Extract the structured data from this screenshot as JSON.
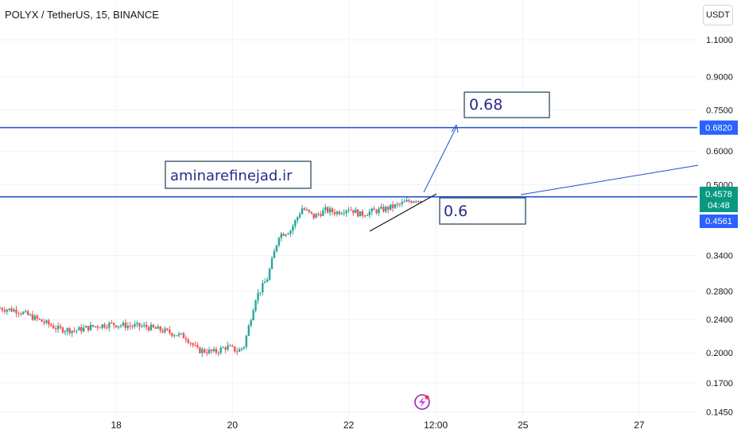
{
  "header": {
    "title": "POLYX / TetherUS, 15, BINANCE",
    "currency": "USDT"
  },
  "colors": {
    "up": "#26a69a",
    "down": "#ef5350",
    "line": "#1e50c8",
    "badge_blue": "#2962ff",
    "badge_green": "#089981",
    "anno_text": "#2a2a8a",
    "grid": "#f0f3fa"
  },
  "chart_data": {
    "type": "candlestick",
    "symbol": "POLYX / TetherUS",
    "interval": "15",
    "exchange": "BINANCE",
    "y_scale": "log",
    "ylim": [
      0.138,
      1.2
    ],
    "y_ticks": [
      {
        "value": 1.1,
        "label": "1.1000"
      },
      {
        "value": 0.9,
        "label": "0.9000"
      },
      {
        "value": 0.75,
        "label": "0.7500"
      },
      {
        "value": 0.6,
        "label": "0.6000"
      },
      {
        "value": 0.5,
        "label": "0.5000"
      },
      {
        "value": 0.34,
        "label": "0.3400"
      },
      {
        "value": 0.28,
        "label": "0.2800"
      },
      {
        "value": 0.24,
        "label": "0.2400"
      },
      {
        "value": 0.2,
        "label": "0.2000"
      },
      {
        "value": 0.17,
        "label": "0.1700"
      },
      {
        "value": 0.145,
        "label": "0.1450"
      }
    ],
    "x_ticks": [
      {
        "t": 18,
        "label": "18"
      },
      {
        "t": 20,
        "label": "20"
      },
      {
        "t": 22,
        "label": "22"
      },
      {
        "t": 23.5,
        "label": "12:00"
      },
      {
        "t": 25,
        "label": "25"
      },
      {
        "t": 27,
        "label": "27"
      }
    ],
    "xlim": [
      16,
      28
    ],
    "price_path": [
      [
        16.0,
        0.255
      ],
      [
        16.3,
        0.252
      ],
      [
        16.5,
        0.245
      ],
      [
        16.8,
        0.235
      ],
      [
        17.0,
        0.228
      ],
      [
        17.3,
        0.226
      ],
      [
        17.6,
        0.231
      ],
      [
        17.9,
        0.234
      ],
      [
        18.2,
        0.232
      ],
      [
        18.5,
        0.231
      ],
      [
        18.8,
        0.226
      ],
      [
        19.0,
        0.222
      ],
      [
        19.2,
        0.218
      ],
      [
        19.4,
        0.203
      ],
      [
        19.7,
        0.201
      ],
      [
        19.9,
        0.207
      ],
      [
        20.1,
        0.202
      ],
      [
        20.2,
        0.208
      ],
      [
        20.4,
        0.27
      ],
      [
        20.6,
        0.3
      ],
      [
        20.8,
        0.38
      ],
      [
        21.0,
        0.39
      ],
      [
        21.2,
        0.44
      ],
      [
        21.4,
        0.42
      ],
      [
        21.6,
        0.435
      ],
      [
        21.8,
        0.43
      ],
      [
        22.0,
        0.44
      ],
      [
        22.2,
        0.425
      ],
      [
        22.4,
        0.432
      ],
      [
        22.6,
        0.437
      ],
      [
        22.8,
        0.445
      ],
      [
        23.0,
        0.455
      ],
      [
        23.15,
        0.462
      ],
      [
        23.25,
        0.458
      ]
    ],
    "horizontal_levels": [
      0.682,
      0.468
    ],
    "price_badges": [
      {
        "value": 0.682,
        "label": "0.6820",
        "color": "blue"
      },
      {
        "value": 0.4578,
        "label": "0.4578",
        "sub": "04:48",
        "color": "green"
      },
      {
        "value": 0.4561,
        "label": "0.4561",
        "color": "blue"
      }
    ],
    "annotations": [
      {
        "text": "0.68"
      },
      {
        "text": "0.6"
      },
      {
        "text": "aminarefinejad.ir"
      }
    ]
  }
}
